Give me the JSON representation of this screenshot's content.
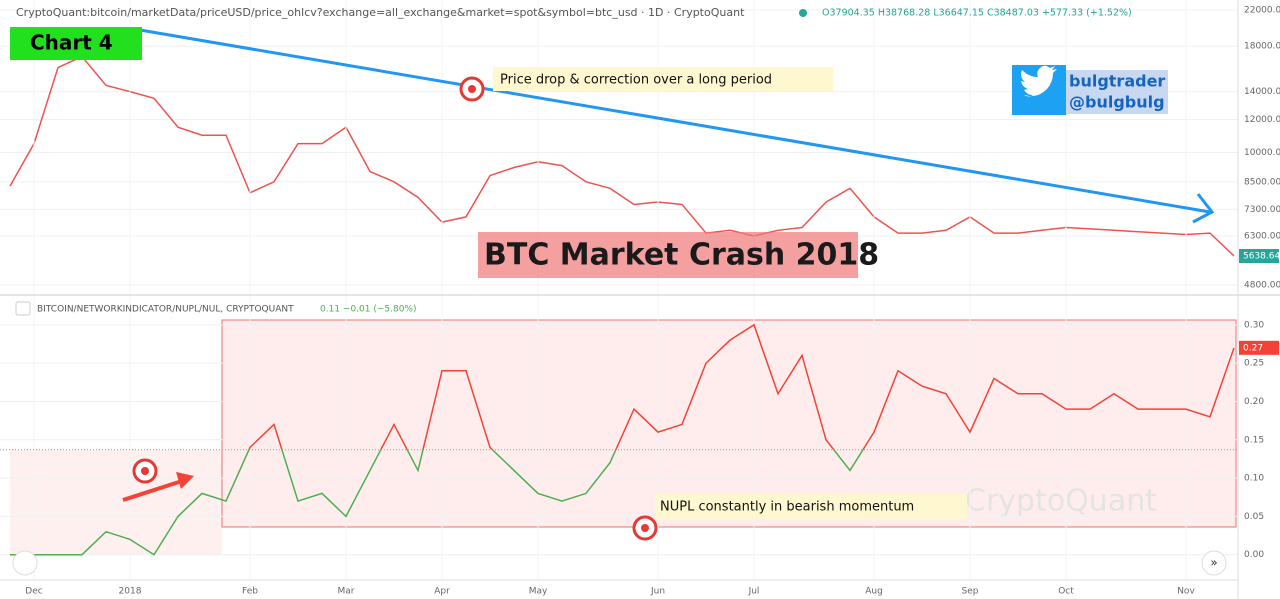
{
  "header": {
    "symbol": "CryptoQuant:bitcoin/marketData/priceUSD/price_ohlcv?exchange=all_exchange&market=spot&symbol=btc_usd · 1D · CryptoQuant",
    "ohlc": "O37904.35 H38768.28 L36647.15 C38487.03 +577.33 (+1.52%)",
    "indicator": "BITCOIN/NETWORKINDICATOR/NUPL/NUL, CRYPTOQUANT",
    "indicator_value": "0.11 −0.01 (−5.80%)"
  },
  "annotations": {
    "chart_label": "Chart 4",
    "price_note": "Price drop & correction over a long period",
    "twitter_name": "bulgtrader",
    "twitter_handle": "@bulgbulg",
    "crash_title": "BTC Market Crash 2018",
    "nupl_note": "NUPL constantly in bearish momentum",
    "watermark": "CryptoQuant"
  },
  "chart_data": [
    {
      "type": "line",
      "log": true,
      "color": "#ef5350",
      "tag_color": "#26a69a",
      "values": [
        8300,
        10500,
        16000,
        17000,
        14500,
        14000,
        13500,
        11500,
        11000,
        11000,
        8000,
        8500,
        10500,
        10500,
        11500,
        9000,
        8500,
        7800,
        6800,
        7000,
        8800,
        9200,
        9500,
        9300,
        8500,
        8200,
        7500,
        7600,
        7500,
        6400,
        6500,
        6300,
        6500,
        6600,
        7600,
        8200,
        7000,
        6400,
        6400,
        6500,
        7000,
        6400,
        6400,
        6500,
        6600,
        6550,
        6500,
        6450,
        6400,
        6350,
        6400,
        5638.64
      ],
      "ylim": [
        4620,
        23250
      ],
      "yticks": [
        {
          "value": 22000,
          "label": "22000.00"
        },
        {
          "value": 18000,
          "label": "18000.00"
        },
        {
          "value": 14000,
          "label": "14000.00"
        },
        {
          "value": 12000,
          "label": "12000.00"
        },
        {
          "value": 10000,
          "label": "10000.00"
        },
        {
          "value": 8500,
          "label": "8500.00"
        },
        {
          "value": 7300,
          "label": "7300.00"
        },
        {
          "value": 6300,
          "label": "6300.00"
        },
        {
          "value": 4800,
          "label": "4800.00"
        }
      ],
      "grid": true
    },
    {
      "type": "line",
      "color_above": "#f44336",
      "color_below": "#4caf50",
      "tag_color": "#f44336",
      "threshold": 0.137,
      "categories": [
        null,
        "Dec",
        null,
        null,
        null,
        "2018",
        null,
        null,
        null,
        null,
        "Feb",
        null,
        null,
        null,
        "Mar",
        null,
        null,
        null,
        "Apr",
        null,
        null,
        null,
        "May",
        null,
        null,
        null,
        null,
        "Jun",
        null,
        null,
        null,
        "Jul",
        null,
        null,
        null,
        null,
        "Aug",
        null,
        null,
        null,
        "Sep",
        null,
        null,
        null,
        "Oct",
        null,
        null,
        null,
        null,
        "Nov",
        null,
        null
      ],
      "values": [
        0,
        0,
        0,
        0,
        0.03,
        0.02,
        0,
        0.05,
        0.08,
        0.07,
        0.14,
        0.17,
        0.07,
        0.08,
        0.05,
        0.11,
        0.17,
        0.11,
        0.24,
        0.24,
        0.14,
        0.11,
        0.08,
        0.07,
        0.08,
        0.12,
        0.19,
        0.16,
        0.17,
        0.25,
        0.28,
        0.3,
        0.21,
        0.26,
        0.15,
        0.11,
        0.16,
        0.24,
        0.22,
        0.21,
        0.16,
        0.23,
        0.21,
        0.21,
        0.19,
        0.19,
        0.21,
        0.19,
        0.19,
        0.19,
        0.18,
        0.27
      ],
      "ylim": [
        -0.033,
        0.335
      ],
      "yticks": [
        {
          "value": 0.3,
          "label": "0.30"
        },
        {
          "value": 0.25,
          "label": "0.25"
        },
        {
          "value": 0.2,
          "label": "0.20"
        },
        {
          "value": 0.15,
          "label": "0.15"
        },
        {
          "value": 0.1,
          "label": "0.10"
        },
        {
          "value": 0.05,
          "label": "0.05"
        },
        {
          "value": 0,
          "label": "0.00"
        }
      ],
      "grid": true
    }
  ]
}
